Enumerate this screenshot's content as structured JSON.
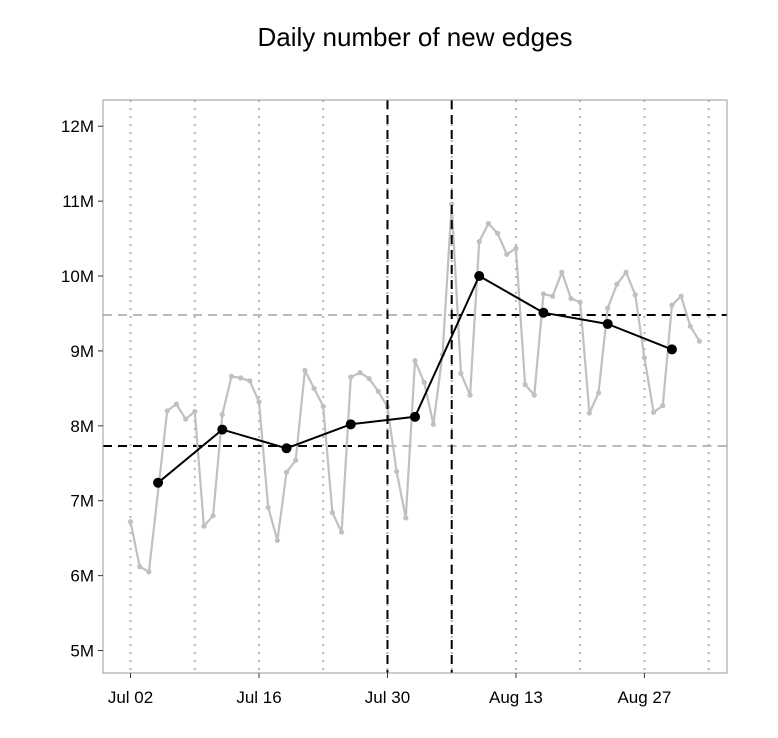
{
  "chart_data": {
    "type": "line",
    "title": "Daily number of new edges",
    "xlabel": "",
    "ylabel": "",
    "x_ticks": [
      {
        "date": "2012-07-02",
        "label": "Jul 02"
      },
      {
        "date": "2012-07-16",
        "label": "Jul 16"
      },
      {
        "date": "2012-07-30",
        "label": "Jul 30"
      },
      {
        "date": "2012-08-13",
        "label": "Aug 13"
      },
      {
        "date": "2012-08-27",
        "label": "Aug 27"
      }
    ],
    "y_ticks": [
      {
        "value": 5000000,
        "label": "5M"
      },
      {
        "value": 6000000,
        "label": "6M"
      },
      {
        "value": 7000000,
        "label": "7M"
      },
      {
        "value": 8000000,
        "label": "8M"
      },
      {
        "value": 9000000,
        "label": "9M"
      },
      {
        "value": 10000000,
        "label": "10M"
      },
      {
        "value": 11000000,
        "label": "11M"
      },
      {
        "value": 12000000,
        "label": "12M"
      }
    ],
    "xlim": [
      "2012-06-29",
      "2012-09-05"
    ],
    "ylim": [
      4700000,
      12350000
    ],
    "vertical_dotted_lines": [
      "2012-07-02",
      "2012-07-09",
      "2012-07-16",
      "2012-07-23",
      "2012-07-30",
      "2012-08-06",
      "2012-08-13",
      "2012-08-20",
      "2012-08-27",
      "2012-09-03"
    ],
    "vertical_dashed_lines": [
      "2012-07-30",
      "2012-08-06"
    ],
    "reference_lines": [
      {
        "from": "2012-06-29",
        "to": "2012-07-30",
        "value": 7730000,
        "color": "#000000"
      },
      {
        "from": "2012-07-30",
        "to": "2012-09-05",
        "value": 7730000,
        "color": "#bbbbbb"
      },
      {
        "from": "2012-06-29",
        "to": "2012-08-06",
        "value": 9480000,
        "color": "#bbbbbb"
      },
      {
        "from": "2012-08-06",
        "to": "2012-09-05",
        "value": 9480000,
        "color": "#000000"
      }
    ],
    "grid": false,
    "series": [
      {
        "color": "#c0c0c0",
        "points": [
          [
            "2012-07-02",
            6720000
          ],
          [
            "2012-07-03",
            6120000
          ],
          [
            "2012-07-04",
            6050000
          ],
          [
            "2012-07-06",
            8200000
          ],
          [
            "2012-07-07",
            8290000
          ],
          [
            "2012-07-08",
            8090000
          ],
          [
            "2012-07-09",
            8190000
          ],
          [
            "2012-07-10",
            6660000
          ],
          [
            "2012-07-11",
            6800000
          ],
          [
            "2012-07-12",
            8150000
          ],
          [
            "2012-07-13",
            8660000
          ],
          [
            "2012-07-14",
            8640000
          ],
          [
            "2012-07-15",
            8600000
          ],
          [
            "2012-07-16",
            8320000
          ],
          [
            "2012-07-17",
            6910000
          ],
          [
            "2012-07-18",
            6470000
          ],
          [
            "2012-07-19",
            7380000
          ],
          [
            "2012-07-20",
            7540000
          ],
          [
            "2012-07-21",
            8740000
          ],
          [
            "2012-07-22",
            8500000
          ],
          [
            "2012-07-23",
            8260000
          ],
          [
            "2012-07-24",
            6840000
          ],
          [
            "2012-07-25",
            6580000
          ],
          [
            "2012-07-26",
            8650000
          ],
          [
            "2012-07-27",
            8710000
          ],
          [
            "2012-07-28",
            8630000
          ],
          [
            "2012-07-29",
            8460000
          ],
          [
            "2012-07-30",
            8250000
          ],
          [
            "2012-07-31",
            7390000
          ],
          [
            "2012-08-01",
            6770000
          ],
          [
            "2012-08-02",
            8870000
          ],
          [
            "2012-08-03",
            8580000
          ],
          [
            "2012-08-04",
            8020000
          ],
          [
            "2012-08-05",
            8950000
          ],
          [
            "2012-08-06",
            10960000
          ],
          [
            "2012-08-07",
            8700000
          ],
          [
            "2012-08-08",
            8410000
          ],
          [
            "2012-08-09",
            10460000
          ],
          [
            "2012-08-10",
            10700000
          ],
          [
            "2012-08-11",
            10570000
          ],
          [
            "2012-08-12",
            10290000
          ],
          [
            "2012-08-13",
            10370000
          ],
          [
            "2012-08-14",
            8550000
          ],
          [
            "2012-08-15",
            8410000
          ],
          [
            "2012-08-16",
            9760000
          ],
          [
            "2012-08-17",
            9730000
          ],
          [
            "2012-08-18",
            10050000
          ],
          [
            "2012-08-19",
            9700000
          ],
          [
            "2012-08-20",
            9650000
          ],
          [
            "2012-08-21",
            8170000
          ],
          [
            "2012-08-22",
            8440000
          ],
          [
            "2012-08-23",
            9570000
          ],
          [
            "2012-08-24",
            9890000
          ],
          [
            "2012-08-25",
            10050000
          ],
          [
            "2012-08-26",
            9750000
          ],
          [
            "2012-08-27",
            8910000
          ],
          [
            "2012-08-28",
            8180000
          ],
          [
            "2012-08-29",
            8270000
          ],
          [
            "2012-08-30",
            9610000
          ],
          [
            "2012-08-31",
            9730000
          ],
          [
            "2012-09-01",
            9330000
          ],
          [
            "2012-09-02",
            9130000
          ]
        ]
      },
      {
        "color": "#000000",
        "points": [
          [
            "2012-07-05",
            7240000
          ],
          [
            "2012-07-12",
            7950000
          ],
          [
            "2012-07-19",
            7700000
          ],
          [
            "2012-07-26",
            8020000
          ],
          [
            "2012-08-02",
            8120000
          ],
          [
            "2012-08-09",
            10000000
          ],
          [
            "2012-08-16",
            9510000
          ],
          [
            "2012-08-23",
            9360000
          ],
          [
            "2012-08-30",
            9020000
          ]
        ]
      }
    ]
  }
}
